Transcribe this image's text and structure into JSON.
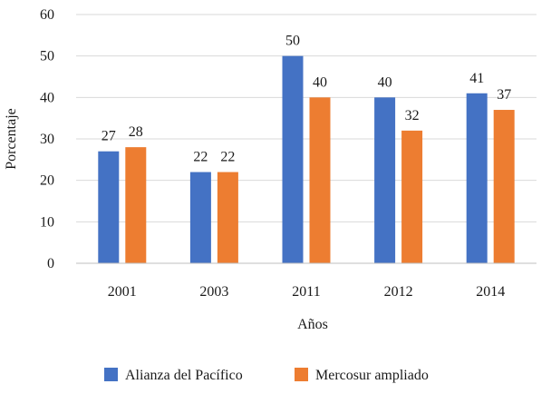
{
  "chart_data": {
    "type": "bar",
    "title": "",
    "xlabel": "Años",
    "ylabel": "Porcentaje",
    "ylim": [
      0,
      60
    ],
    "yticks": [
      0,
      10,
      20,
      30,
      40,
      50,
      60
    ],
    "grid": true,
    "legend_position": "bottom",
    "categories": [
      "2001",
      "2003",
      "2011",
      "2012",
      "2014"
    ],
    "series": [
      {
        "name": "Alianza del Pacífico",
        "color": "#4472c4",
        "values": [
          27,
          22,
          50,
          40,
          41
        ]
      },
      {
        "name": "Mercosur ampliado",
        "color": "#ed7d31",
        "values": [
          28,
          22,
          40,
          32,
          37
        ]
      }
    ]
  }
}
